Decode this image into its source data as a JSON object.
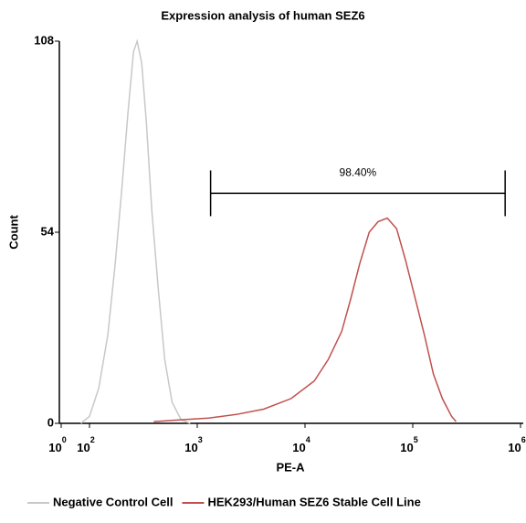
{
  "chart_data": {
    "type": "line",
    "title": "Expression analysis of human SEZ6",
    "xlabel": "PE-A",
    "ylabel": "Count",
    "xscale": "biexponential",
    "linthresh": 100,
    "xlim": [
      1,
      1000000
    ],
    "ylim": [
      0,
      108
    ],
    "xticks": [
      {
        "value": 1,
        "label": "10",
        "sup": "0"
      },
      {
        "value": 100,
        "label": "10",
        "sup": "2"
      },
      {
        "value": 1000,
        "label": "10",
        "sup": "3"
      },
      {
        "value": 10000,
        "label": "10",
        "sup": "4"
      },
      {
        "value": 100000,
        "label": "10",
        "sup": "5"
      },
      {
        "value": 1000000,
        "label": "10",
        "sup": "6"
      }
    ],
    "yticks": [
      0,
      54,
      108
    ],
    "series": [
      {
        "name": "Negative Control Cell",
        "color": "#c8c8c8",
        "x": [
          70,
          100,
          122,
          148,
          173,
          198,
          228,
          256,
          277,
          305,
          337,
          379,
          435,
          499,
          584,
          708,
          860
        ],
        "values": [
          0,
          2,
          10,
          25,
          45,
          65,
          88,
          105,
          108,
          102,
          85,
          60,
          38,
          18,
          6,
          1,
          0
        ]
      },
      {
        "name": "HEK293/Human SEZ6 Stable Cell Line",
        "color": "#c0504d",
        "x": [
          395,
          708,
          1275,
          2300,
          4130,
          7430,
          12200,
          16400,
          21900,
          26500,
          32100,
          39400,
          47700,
          58000,
          70800,
          85800,
          104000,
          128000,
          155000,
          188000,
          229000,
          252000
        ],
        "values": [
          0.5,
          1,
          1.5,
          2.5,
          4,
          7,
          12,
          18,
          26,
          35,
          45,
          54,
          57,
          58,
          55,
          46,
          36,
          25,
          14,
          7,
          2,
          0.5
        ]
      }
    ],
    "gate": {
      "label": "98.40%",
      "start": 1330,
      "end": 720000,
      "y": 65
    },
    "legend": "bottom"
  }
}
